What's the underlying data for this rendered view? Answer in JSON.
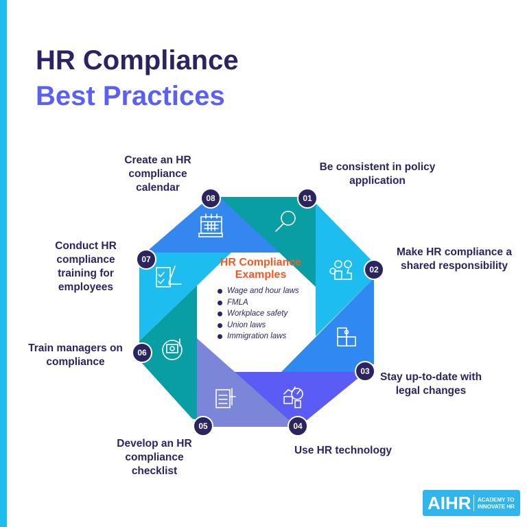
{
  "title": {
    "line1": "HR Compliance",
    "line2": "Best Practices"
  },
  "colors": {
    "title_dark": "#2d2363",
    "title_accent": "#5a5ff5",
    "center_title": "#f05a22",
    "badge": "#2b2460",
    "stripe": "#1ebdf0"
  },
  "center": {
    "title": "HR Compliance Examples",
    "items": [
      "Wage and hour laws",
      "FMLA",
      "Workplace safety",
      "Union laws",
      "Immigration laws"
    ]
  },
  "steps": [
    {
      "number": "01",
      "label": "Be consistent in policy application",
      "icon": "magnifier-icon",
      "color": "#089ea3"
    },
    {
      "number": "02",
      "label": "Make HR compliance a shared responsibility",
      "icon": "team-thumbs-up-icon",
      "color": "#1ebdf0"
    },
    {
      "number": "03",
      "label": "Stay up-to-date with legal changes",
      "icon": "puzzle-icon",
      "color": "#3089f0"
    },
    {
      "number": "04",
      "label": "Use HR technology",
      "icon": "tech-gauge-icon",
      "color": "#5a5cf5"
    },
    {
      "number": "05",
      "label": "Develop an HR compliance checklist",
      "icon": "checklist-document-icon",
      "color": "#7b86d9"
    },
    {
      "number": "06",
      "label": "Train managers on compliance",
      "icon": "training-screen-icon",
      "color": "#089ea3"
    },
    {
      "number": "07",
      "label": "Conduct HR compliance training for employees",
      "icon": "form-signing-icon",
      "color": "#1ebdf0"
    },
    {
      "number": "08",
      "label": "Create an HR compliance calendar",
      "icon": "calendar-icon",
      "color": "#3387ee"
    }
  ],
  "logo": {
    "mark": "AIHR",
    "tagline_line1": "ACADEMY TO",
    "tagline_line2": "INNOVATE HR"
  }
}
